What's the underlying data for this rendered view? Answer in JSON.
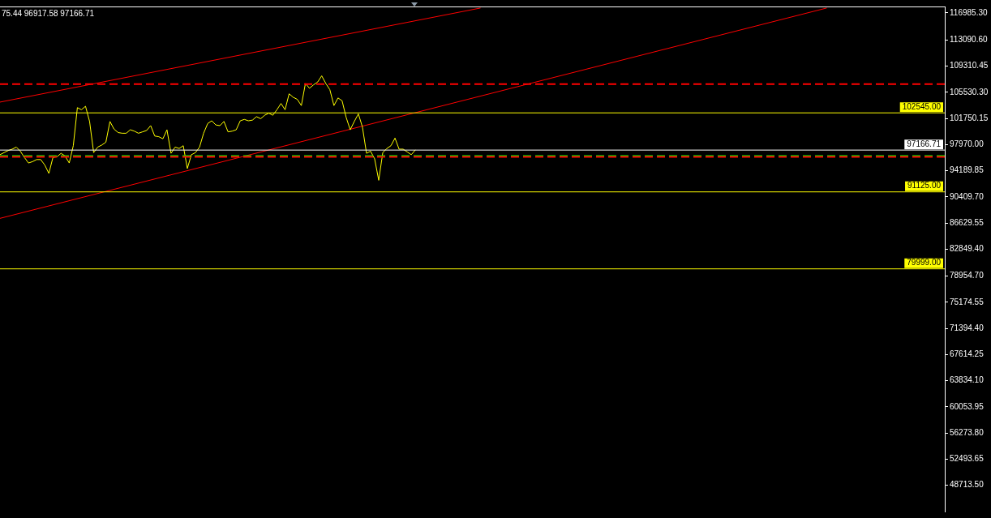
{
  "chart_data": {
    "type": "line",
    "annotations": [
      "75.44 96917.58 97166.71"
    ],
    "categories": [
      null,
      null,
      null,
      null,
      null,
      null,
      null,
      null,
      null,
      null,
      null,
      null,
      null,
      null,
      null,
      null,
      null,
      null,
      null,
      null,
      null,
      null,
      null,
      null,
      null,
      null,
      null,
      null,
      null,
      null,
      null,
      null,
      null,
      null,
      null,
      null,
      null,
      null,
      null,
      null,
      null,
      null,
      null,
      null,
      null,
      null,
      null,
      null,
      null,
      null,
      null,
      null,
      null,
      null,
      null,
      null,
      null,
      null,
      null,
      null,
      null,
      null,
      null,
      null,
      null,
      null,
      null,
      null,
      null,
      null,
      null,
      null,
      null,
      null,
      null,
      null,
      null,
      null,
      null,
      null,
      null,
      null,
      null,
      null,
      null,
      null,
      null,
      null,
      null,
      null,
      null,
      null,
      null,
      null,
      null,
      null,
      null,
      null,
      null,
      null,
      null,
      null,
      null,
      null,
      null,
      null,
      null,
      null,
      null,
      null,
      null,
      null,
      null,
      null,
      null,
      null,
      null,
      null,
      null,
      null,
      null,
      null,
      null,
      null,
      null,
      null,
      null,
      null,
      null,
      null,
      null,
      null,
      null,
      null,
      null,
      null,
      null,
      null,
      null,
      null,
      null,
      null,
      null,
      null,
      null,
      null,
      null,
      null,
      null,
      null,
      null,
      null,
      null,
      null,
      null,
      null,
      null,
      null,
      null,
      null,
      null,
      null,
      null,
      null,
      null,
      null,
      null,
      null,
      null,
      null,
      null,
      null,
      null,
      null,
      null,
      null,
      null,
      null,
      null,
      null,
      null,
      null,
      null,
      null,
      null,
      null,
      null,
      null,
      null,
      null,
      null,
      null,
      null,
      null,
      null,
      null,
      null,
      null,
      null,
      null,
      null,
      null,
      null,
      null,
      null,
      null,
      null,
      null,
      null,
      null,
      null,
      null,
      null,
      null,
      null,
      null,
      null,
      null,
      null,
      null,
      null,
      null,
      null,
      null,
      null,
      null,
      null,
      null,
      null,
      null,
      null,
      null,
      null
    ],
    "series": [
      {
        "color": "#ffff00",
        "values": [
          96500,
          96800,
          97100,
          97300,
          97600,
          97000,
          96100,
          95300,
          95500,
          95800,
          95800,
          95000,
          93800,
          96100,
          96200,
          96700,
          96300,
          95300,
          97800,
          103300,
          103000,
          103500,
          101300,
          96800,
          97600,
          97900,
          98300,
          101300,
          100200,
          99700,
          99600,
          99600,
          100100,
          99900,
          99600,
          99800,
          100000,
          100700,
          99200,
          99100,
          98800,
          100100,
          96700,
          97600,
          97400,
          97800,
          94500,
          96500,
          96800,
          97600,
          99600,
          101000,
          101400,
          100800,
          100700,
          101300,
          99800,
          99900,
          100100,
          101400,
          101600,
          101400,
          101500,
          102000,
          101700,
          102200,
          102500,
          102200,
          103000,
          103900,
          103000,
          105300,
          104800,
          104500,
          103600,
          106800,
          106100,
          106600,
          107000,
          107900,
          106800,
          105900,
          103600,
          104700,
          104300,
          101900,
          100100,
          101300,
          102400,
          100500,
          96700,
          97000,
          95900,
          92800,
          96800,
          97400,
          97800,
          98900,
          97300,
          97300,
          96900,
          96500,
          97200,
          null,
          null,
          null,
          null,
          null,
          null,
          null,
          null,
          null,
          null,
          null,
          null,
          null,
          null,
          null,
          null,
          null,
          null,
          null,
          null,
          null,
          null,
          null,
          null,
          null,
          null,
          null,
          null,
          null,
          null,
          null,
          null,
          null,
          null,
          null,
          null,
          null,
          null,
          null,
          null,
          null,
          null,
          null,
          null,
          null,
          null,
          null,
          null,
          null,
          null,
          null,
          null,
          null,
          null,
          null,
          null,
          null,
          null,
          null,
          null,
          null,
          null,
          null,
          null,
          null,
          null,
          null,
          null,
          null,
          null,
          null,
          null,
          null,
          null,
          null,
          null,
          null,
          null,
          null,
          null,
          null,
          null,
          null,
          null,
          null,
          null,
          null,
          null,
          null,
          null,
          null,
          null,
          null,
          null,
          null,
          null,
          null,
          null,
          null,
          null,
          null,
          null,
          null,
          null,
          null,
          null,
          null,
          null,
          null,
          null,
          null,
          null,
          null,
          null,
          null,
          null,
          null,
          null,
          null,
          null,
          null,
          null,
          null,
          null,
          null,
          null,
          null,
          null,
          null,
          null
        ]
      },
      {
        "color": "#ff0000",
        "values": [
          104100,
          null,
          null,
          null,
          null,
          null,
          null,
          null,
          null,
          null,
          null,
          null,
          null,
          null,
          null,
          null,
          null,
          null,
          null,
          null,
          null,
          null,
          null,
          null,
          null,
          null,
          null,
          null,
          null,
          null,
          null,
          null,
          null,
          null,
          null,
          null,
          null,
          null,
          null,
          null,
          null,
          null,
          null,
          null,
          null,
          null,
          null,
          null,
          null,
          null,
          null,
          null,
          null,
          null,
          null,
          null,
          null,
          null,
          null,
          null,
          null,
          null,
          null,
          null,
          null,
          null,
          null,
          null,
          null,
          null,
          null,
          null,
          null,
          null,
          null,
          null,
          null,
          null,
          null,
          null,
          null,
          null,
          null,
          null,
          null,
          null,
          null,
          null,
          null,
          null,
          null,
          null,
          null,
          null,
          null,
          null,
          null,
          null,
          null,
          null,
          null,
          null,
          null,
          null,
          null,
          null,
          null,
          null,
          null,
          null,
          null,
          null,
          null,
          null,
          null,
          null,
          null,
          null,
          117700,
          null,
          null,
          null,
          null,
          null,
          null,
          null,
          null,
          null,
          null,
          null,
          null,
          null,
          null,
          null,
          null,
          null,
          null,
          null,
          null,
          null,
          null,
          null,
          null,
          null,
          null,
          null,
          null,
          null,
          null,
          null,
          null,
          null,
          null,
          null,
          null,
          null,
          null,
          null,
          null,
          null,
          null,
          null,
          null,
          null,
          null,
          null,
          null,
          null,
          null,
          null,
          null,
          null,
          null,
          null,
          null,
          null,
          null,
          null,
          null,
          null,
          null,
          null,
          null,
          null,
          null,
          null,
          null,
          null,
          null,
          null,
          null,
          null,
          null,
          null,
          null,
          null,
          null,
          null,
          null,
          null,
          null,
          null,
          null,
          null,
          null,
          null,
          null,
          null,
          null,
          null,
          null,
          null,
          null,
          null,
          null,
          null,
          null,
          null,
          null,
          null,
          null,
          null,
          null,
          null,
          null,
          null,
          null,
          null,
          null,
          null,
          null,
          null,
          null
        ]
      },
      {
        "color": "#ff0000",
        "values": [
          87300,
          null,
          null,
          null,
          null,
          null,
          null,
          null,
          null,
          null,
          null,
          null,
          null,
          null,
          null,
          null,
          null,
          null,
          null,
          null,
          null,
          null,
          null,
          null,
          null,
          null,
          null,
          null,
          null,
          null,
          null,
          null,
          null,
          null,
          null,
          null,
          null,
          null,
          null,
          null,
          null,
          null,
          null,
          null,
          null,
          null,
          null,
          null,
          null,
          null,
          null,
          null,
          null,
          null,
          null,
          null,
          null,
          null,
          null,
          null,
          null,
          null,
          null,
          null,
          null,
          null,
          null,
          null,
          null,
          null,
          null,
          null,
          null,
          null,
          null,
          null,
          null,
          null,
          null,
          null,
          null,
          null,
          null,
          null,
          null,
          null,
          null,
          null,
          null,
          null,
          null,
          null,
          null,
          null,
          null,
          null,
          null,
          null,
          null,
          null,
          null,
          null,
          null,
          null,
          null,
          null,
          null,
          null,
          null,
          null,
          null,
          null,
          null,
          null,
          null,
          null,
          null,
          null,
          null,
          null,
          null,
          null,
          null,
          null,
          null,
          null,
          null,
          null,
          null,
          null,
          null,
          null,
          null,
          null,
          null,
          null,
          null,
          null,
          null,
          null,
          null,
          null,
          null,
          null,
          null,
          null,
          null,
          null,
          null,
          null,
          null,
          null,
          null,
          null,
          null,
          null,
          null,
          null,
          null,
          null,
          null,
          null,
          null,
          null,
          null,
          null,
          null,
          null,
          null,
          null,
          null,
          null,
          null,
          null,
          null,
          null,
          null,
          null,
          null,
          null,
          null,
          null,
          null,
          null,
          null,
          null,
          null,
          null,
          null,
          null,
          null,
          null,
          null,
          null,
          null,
          null,
          null,
          null,
          null,
          null,
          null,
          null,
          null,
          117700,
          null,
          null,
          null,
          null,
          null,
          null,
          null,
          null,
          null,
          null,
          null,
          null,
          null,
          null,
          null,
          null,
          null,
          null,
          null,
          null,
          null,
          null,
          null,
          null,
          null,
          null,
          null,
          null,
          null
        ]
      }
    ],
    "ylim": [
      44930,
      117920
    ],
    "yticks": [
      {
        "value": 116985.3,
        "label": "116985.30"
      },
      {
        "value": 113090.6,
        "label": "113090.60"
      },
      {
        "value": 109310.45,
        "label": "109310.45"
      },
      {
        "value": 105530.3,
        "label": "105530.30"
      },
      {
        "value": 101750.15,
        "label": "101750.15"
      },
      {
        "value": 97970,
        "label": "97970.00"
      },
      {
        "value": 94189.85,
        "label": "94189.85"
      },
      {
        "value": 90409.7,
        "label": "90409.70"
      },
      {
        "value": 86629.55,
        "label": "86629.55"
      },
      {
        "value": 82849.4,
        "label": "82849.40"
      },
      {
        "value": 78954.7,
        "label": "78954.70"
      },
      {
        "value": 75174.55,
        "label": "75174.55"
      },
      {
        "value": 71394.4,
        "label": "71394.40"
      },
      {
        "value": 67614.25,
        "label": "67614.25"
      },
      {
        "value": 63834.1,
        "label": "63834.10"
      },
      {
        "value": 60053.95,
        "label": "60053.95"
      },
      {
        "value": 56273.8,
        "label": "56273.80"
      },
      {
        "value": 52493.65,
        "label": "52493.65"
      },
      {
        "value": 48713.5,
        "label": "48713.50"
      }
    ],
    "ref_lines": [
      {
        "axis": "y",
        "value": 102545,
        "label": "102545.00",
        "color": "#ffff00"
      },
      {
        "axis": "y",
        "value": 91125,
        "label": "91125.00",
        "color": "#ffff00"
      },
      {
        "axis": "y",
        "value": 79999,
        "label": "79999.00",
        "color": "#ffff00"
      },
      {
        "axis": "y",
        "value": 97166.71,
        "label": "97166.71",
        "color": "#ffffff"
      },
      {
        "axis": "y",
        "value": 106700,
        "color": "#ff0000",
        "line_style": "dashed"
      },
      {
        "axis": "y",
        "value": 96300,
        "color": "#00ff00",
        "line_style": "dashed"
      },
      {
        "axis": "y",
        "value": 96200,
        "color": "#ff0000",
        "line_style": "dashed"
      }
    ],
    "tick_labels": "y",
    "marker": "none",
    "legend": false,
    "grid": false
  }
}
